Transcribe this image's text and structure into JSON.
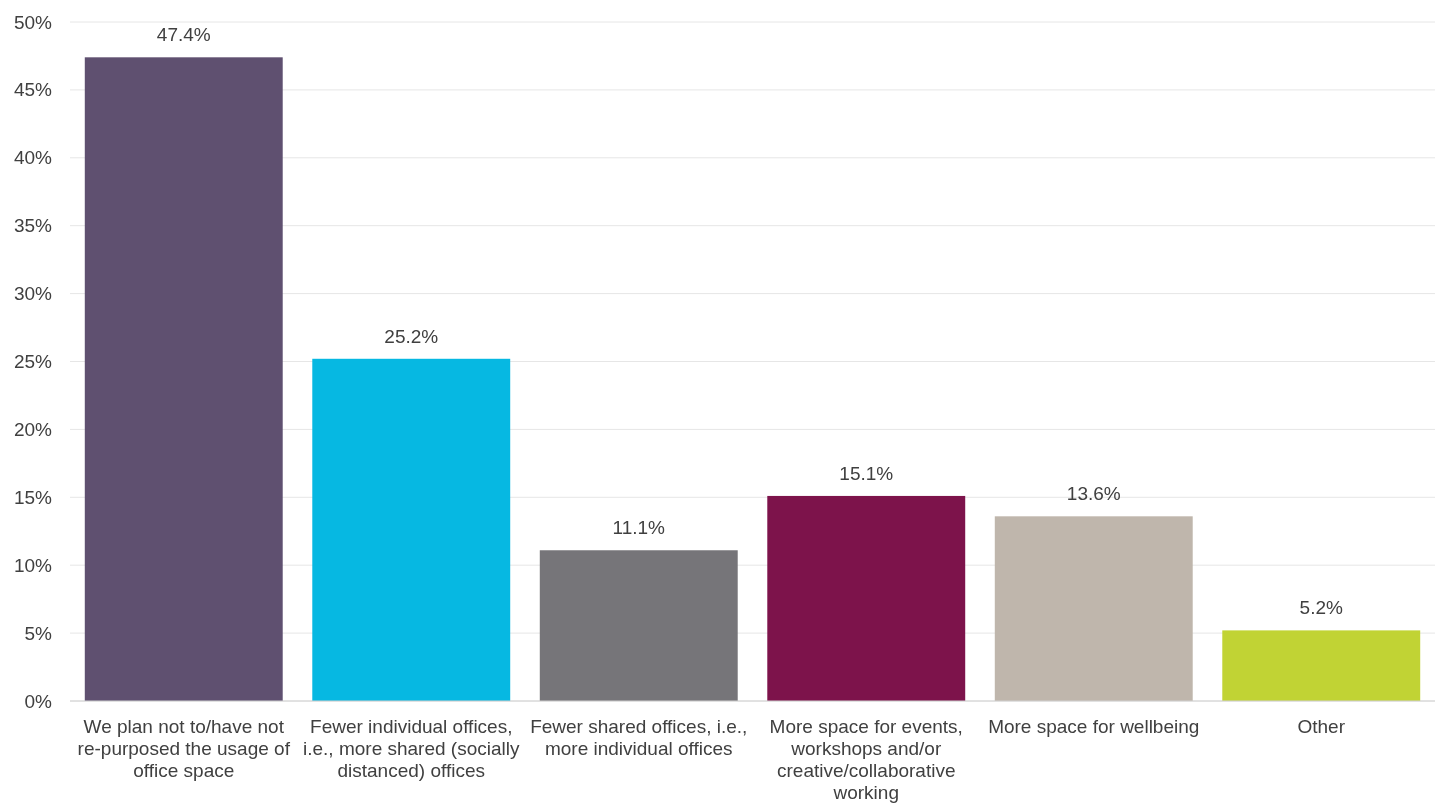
{
  "chart_data": {
    "type": "bar",
    "categories": [
      "We plan not to/have not re-purposed the usage of office space",
      "Fewer individual offices, i.e., more shared (socially distanced) offices",
      "Fewer shared offices, i.e., more individual offices",
      "More space for events, workshops and/or creative/collaborative working",
      "More space for wellbeing",
      "Other"
    ],
    "values": [
      47.4,
      25.2,
      11.1,
      15.1,
      13.6,
      5.2
    ],
    "value_labels": [
      "47.4%",
      "25.2%",
      "11.1%",
      "15.1%",
      "13.6%",
      "5.2%"
    ],
    "colors": [
      "#5f5070",
      "#06b8e2",
      "#767579",
      "#7d134b",
      "#bfb6ac",
      "#c1d334"
    ],
    "ylim": [
      0,
      50
    ],
    "yticks": [
      {
        "value": 0,
        "label": "0%"
      },
      {
        "value": 5,
        "label": "5%"
      },
      {
        "value": 10,
        "label": "10%"
      },
      {
        "value": 15,
        "label": "15%"
      },
      {
        "value": 20,
        "label": "20%"
      },
      {
        "value": 25,
        "label": "25%"
      },
      {
        "value": 30,
        "label": "30%"
      },
      {
        "value": 35,
        "label": "35%"
      },
      {
        "value": 40,
        "label": "40%"
      },
      {
        "value": 45,
        "label": "45%"
      },
      {
        "value": 50,
        "label": "50%"
      }
    ],
    "grid": "y"
  }
}
